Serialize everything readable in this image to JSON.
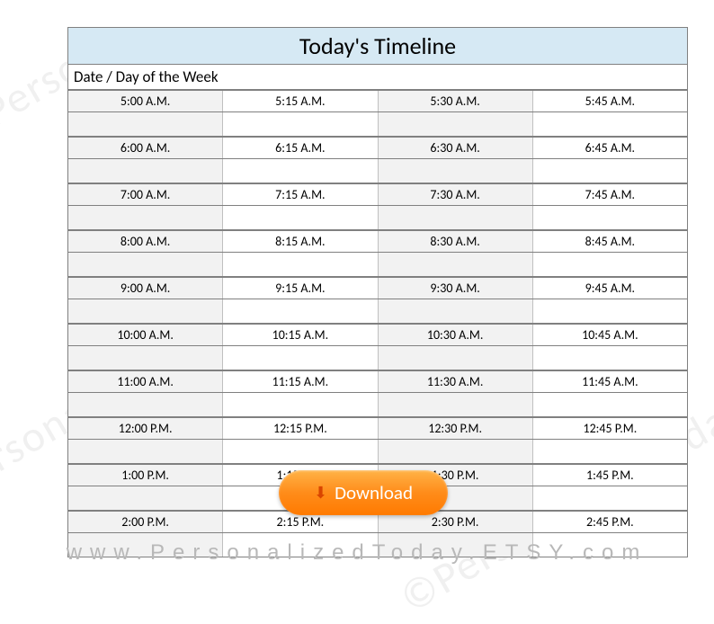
{
  "title": "Today's Timeline",
  "date_label": "Date / Day of the Week",
  "rows": [
    [
      "5:00 A.M.",
      "5:15 A.M.",
      "5:30 A.M.",
      "5:45 A.M."
    ],
    [
      "6:00 A.M.",
      "6:15 A.M.",
      "6:30 A.M.",
      "6:45 A.M."
    ],
    [
      "7:00 A.M.",
      "7:15 A.M.",
      "7:30 A.M.",
      "7:45 A.M."
    ],
    [
      "8:00 A.M.",
      "8:15 A.M.",
      "8:30 A.M.",
      "8:45 A.M."
    ],
    [
      "9:00 A.M.",
      "9:15 A.M.",
      "9:30 A.M.",
      "9:45 A.M."
    ],
    [
      "10:00 A.M.",
      "10:15 A.M.",
      "10:30 A.M.",
      "10:45 A.M."
    ],
    [
      "11:00 A.M.",
      "11:15 A.M.",
      "11:30 A.M.",
      "11:45 A.M."
    ],
    [
      "12:00 P.M.",
      "12:15 P.M.",
      "12:30 P.M.",
      "12:45 P.M."
    ],
    [
      "1:00 P.M.",
      "1:15 P.M.",
      "1:30 P.M.",
      "1:45 P.M."
    ],
    [
      "2:00 P.M.",
      "2:15 P.M.",
      "2:30 P.M.",
      "2:45 P.M."
    ]
  ],
  "shaded_columns": [
    true,
    false,
    true,
    false
  ],
  "colors": {
    "title_bg": "#d6e9f4",
    "shaded_bg": "#f2f2f2",
    "border": "#808080",
    "inner_border": "#c0c0c0",
    "text": "#000000",
    "watermark": "#f0f0f0",
    "footer": "#b8b8b8",
    "btn_grad_top": "#ffb347",
    "btn_grad_bot": "#ff7a00"
  },
  "download_label": "Download",
  "footer_url": "www.PersonalizedToday.ETSY.com",
  "watermark_text": "©PersonalizedToday"
}
